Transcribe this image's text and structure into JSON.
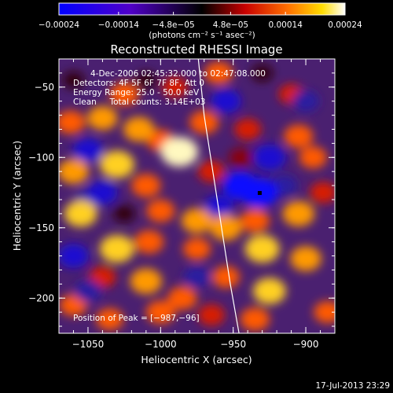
{
  "chart_data": {
    "type": "heatmap",
    "title": "Reconstructed RHESSI Image",
    "xlabel": "Heliocentric X (arcsec)",
    "ylabel": "Heliocentric Y (arcsec)",
    "xlim": [
      -1070,
      -880
    ],
    "ylim": [
      -225,
      -30
    ],
    "x_ticks": [
      -1050,
      -1000,
      -950,
      -900
    ],
    "x_tick_labels": [
      "−1050",
      "−1000",
      "−950",
      "−900"
    ],
    "y_ticks": [
      -50,
      -100,
      -150,
      -200
    ],
    "y_tick_labels": [
      "−50",
      "−100",
      "−150",
      "−200"
    ],
    "colorbar": {
      "range": [
        -0.00024,
        0.00024
      ],
      "ticks": [
        -0.00024,
        -0.00014,
        -4.8e-05,
        4.8e-05,
        0.00014,
        0.00024
      ],
      "tick_labels": [
        "−0.00024",
        "−0.00014",
        "−4.8e−05",
        "4.8e−05",
        "0.00014",
        "0.00024"
      ],
      "unit_label": "(photons cm⁻² s⁻¹ asec⁻²)"
    },
    "annotations": {
      "time_range": "4-Dec-2006 02:45:32.000 to 02:47:08.000",
      "detectors": "Detectors: 4F 5F 6F 7F 8F, Att 0",
      "energy": "Energy Range: 25.0 - 50.0 keV",
      "clean": "Clean     Total counts: 3.14E+03",
      "peak": "Position of Peak = [−987,−96]"
    },
    "peak_position": [
      -987,
      -96
    ],
    "total_counts": 3140,
    "limb_curve": {
      "x": [
        -974,
        -970,
        -964,
        -958,
        -952,
        -946
      ],
      "y": [
        -30,
        -70,
        -110,
        -150,
        -190,
        -225
      ]
    },
    "map_blobs": [
      {
        "x": -1060,
        "y": -45,
        "w": 0.1
      },
      {
        "x": -1025,
        "y": -55,
        "w": 0.55
      },
      {
        "x": -1010,
        "y": -45,
        "w": 0.1
      },
      {
        "x": -990,
        "y": -50,
        "w": 0.35
      },
      {
        "x": -960,
        "y": -40,
        "w": 0.5
      },
      {
        "x": -930,
        "y": -40,
        "w": 0.1
      },
      {
        "x": -910,
        "y": -55,
        "w": 0.3
      },
      {
        "x": -1062,
        "y": -75,
        "w": 0.55
      },
      {
        "x": -1040,
        "y": -72,
        "w": 0.6
      },
      {
        "x": -1015,
        "y": -80,
        "w": 0.65
      },
      {
        "x": -1000,
        "y": -88,
        "w": 0.45
      },
      {
        "x": -987,
        "y": -96,
        "w": 1.0
      },
      {
        "x": -970,
        "y": -75,
        "w": 0.55
      },
      {
        "x": -940,
        "y": -80,
        "w": 0.4
      },
      {
        "x": -905,
        "y": -85,
        "w": 0.55
      },
      {
        "x": -1060,
        "y": -110,
        "w": 0.65
      },
      {
        "x": -1030,
        "y": -105,
        "w": 0.85
      },
      {
        "x": -1010,
        "y": -120,
        "w": 0.55
      },
      {
        "x": -965,
        "y": -110,
        "w": 0.4
      },
      {
        "x": -945,
        "y": -100,
        "w": 0.2
      },
      {
        "x": -895,
        "y": -100,
        "w": 0.45
      },
      {
        "x": -1055,
        "y": -140,
        "w": 0.75
      },
      {
        "x": -1025,
        "y": -140,
        "w": 0.1
      },
      {
        "x": -1000,
        "y": -138,
        "w": 0.5
      },
      {
        "x": -975,
        "y": -145,
        "w": 0.65
      },
      {
        "x": -955,
        "y": -150,
        "w": 0.7
      },
      {
        "x": -935,
        "y": -145,
        "w": 0.55
      },
      {
        "x": -905,
        "y": -140,
        "w": 0.7
      },
      {
        "x": -888,
        "y": -125,
        "w": 0.4
      },
      {
        "x": -1030,
        "y": -165,
        "w": 0.85
      },
      {
        "x": -1008,
        "y": -160,
        "w": 0.55
      },
      {
        "x": -975,
        "y": -165,
        "w": 0.45
      },
      {
        "x": -930,
        "y": -165,
        "w": 0.85
      },
      {
        "x": -900,
        "y": -172,
        "w": 0.65
      },
      {
        "x": -1040,
        "y": -185,
        "w": 0.4
      },
      {
        "x": -1010,
        "y": -188,
        "w": 0.7
      },
      {
        "x": -985,
        "y": -200,
        "w": 0.55
      },
      {
        "x": -955,
        "y": -185,
        "w": 0.45
      },
      {
        "x": -925,
        "y": -195,
        "w": 0.75
      },
      {
        "x": -1060,
        "y": -205,
        "w": 0.45
      },
      {
        "x": -1035,
        "y": -215,
        "w": 0.45
      },
      {
        "x": -1000,
        "y": -210,
        "w": 0.55
      },
      {
        "x": -965,
        "y": -212,
        "w": 0.4
      },
      {
        "x": -935,
        "y": -215,
        "w": 0.55
      },
      {
        "x": -885,
        "y": -210,
        "w": 0.45
      },
      {
        "x": -1050,
        "y": -95,
        "w": -0.6
      },
      {
        "x": -955,
        "y": -60,
        "w": -0.6
      },
      {
        "x": -945,
        "y": -120,
        "w": -0.9
      },
      {
        "x": -932,
        "y": -125,
        "w": -1.0
      },
      {
        "x": -925,
        "y": -100,
        "w": -0.75
      },
      {
        "x": -1050,
        "y": -130,
        "w": -0.45
      },
      {
        "x": -1040,
        "y": -125,
        "w": -0.6
      },
      {
        "x": -960,
        "y": -135,
        "w": -0.55
      },
      {
        "x": -1060,
        "y": -170,
        "w": -0.6
      },
      {
        "x": -1050,
        "y": -195,
        "w": -0.45
      },
      {
        "x": -975,
        "y": -185,
        "w": -0.4
      },
      {
        "x": -915,
        "y": -120,
        "w": -0.4
      },
      {
        "x": -900,
        "y": -60,
        "w": -0.4
      }
    ]
  },
  "footer": {
    "timestamp": "17-Jul-2013 23:29"
  }
}
